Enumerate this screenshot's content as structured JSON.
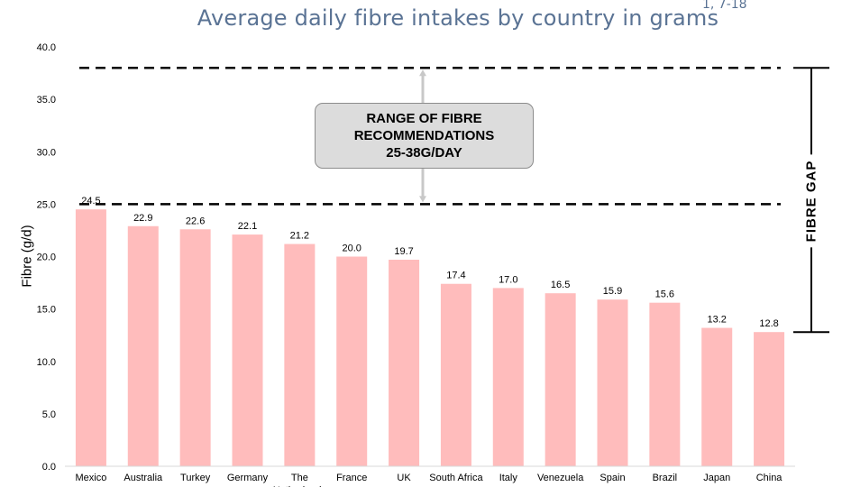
{
  "chart_data": {
    "type": "bar",
    "title": "Average daily fibre intakes by country in grams",
    "title_reference": "1, 7-18",
    "ylabel": "Fibre (g/d)",
    "xlabel": "",
    "ylim": [
      0,
      40
    ],
    "yticks": [
      "0.0",
      "5.0",
      "10.0",
      "15.0",
      "20.0",
      "25.0",
      "30.0",
      "35.0",
      "40.0"
    ],
    "categories": [
      "Mexico",
      "Australia",
      "Turkey",
      "Germany",
      "The Netherlands",
      "France",
      "UK",
      "South Africa",
      "Italy",
      "Venezuela",
      "Spain",
      "Brazil",
      "Japan",
      "China"
    ],
    "values": [
      24.5,
      22.9,
      22.6,
      22.1,
      21.2,
      20.0,
      19.7,
      17.4,
      17.0,
      16.5,
      15.9,
      15.6,
      13.2,
      12.8
    ],
    "value_labels": [
      "24.5",
      "22.9",
      "22.6",
      "22.1",
      "21.2",
      "20.0",
      "19.7",
      "17.4",
      "17.0",
      "16.5",
      "15.9",
      "15.6",
      "13.2",
      "12.8"
    ],
    "bar_color": "#ffbcbc",
    "reference_lines": [
      {
        "value": 25,
        "style": "dashed"
      },
      {
        "value": 38,
        "style": "dashed"
      }
    ],
    "annotations": {
      "range_box_lines": [
        "RANGE OF FIBRE",
        "RECOMMENDATIONS",
        "25-38G/DAY"
      ],
      "gap_label": "FIBRE GAP",
      "gap_range": [
        12.8,
        38
      ]
    },
    "grid": false,
    "legend": "none"
  }
}
